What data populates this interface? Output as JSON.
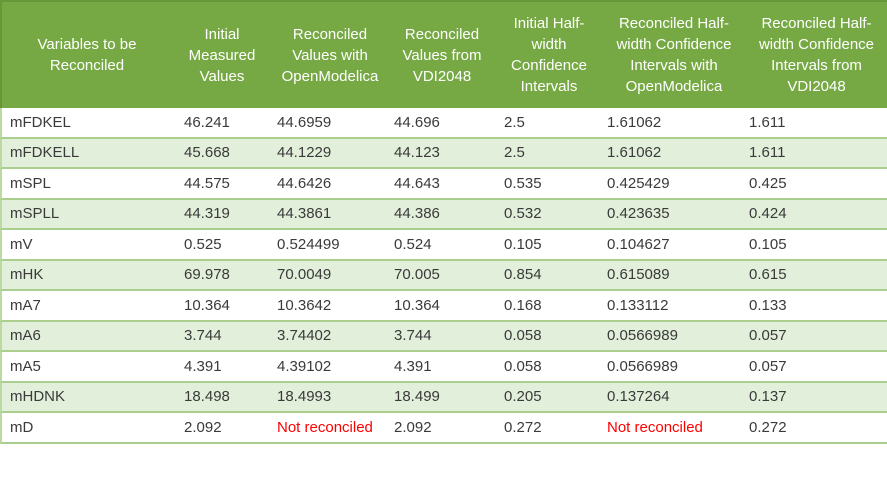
{
  "table": {
    "not_reconciled_label": "Not reconciled",
    "columns": [
      {
        "id": "variables",
        "label": "Variables to be Reconciled"
      },
      {
        "id": "initial-measured-values",
        "label": "Initial Measured Values"
      },
      {
        "id": "reconciled-values-openmodelica",
        "label": "Reconciled Values with OpenModelica"
      },
      {
        "id": "reconciled-values-vdi2048",
        "label": "Reconciled Values from VDI2048"
      },
      {
        "id": "initial-halfwidth-confidence-intervals",
        "label": "Initial Half-width Confidence Intervals"
      },
      {
        "id": "reconciled-halfwidth-ci-openmodelica",
        "label": "Reconciled Half-width Confidence Intervals with OpenModelica"
      },
      {
        "id": "reconciled-halfwidth-ci-vdi2048",
        "label": "Reconciled Half-width Confidence Intervals from VDI2048"
      }
    ],
    "rows": [
      {
        "variable": "mFDKEL",
        "values": [
          "46.241",
          "44.6959",
          "44.696",
          "2.5",
          "1.61062",
          "1.611"
        ]
      },
      {
        "variable": "mFDKELL",
        "values": [
          "45.668",
          "44.1229",
          "44.123",
          "2.5",
          "1.61062",
          "1.611"
        ]
      },
      {
        "variable": "mSPL",
        "values": [
          "44.575",
          "44.6426",
          "44.643",
          "0.535",
          "0.425429",
          "0.425"
        ]
      },
      {
        "variable": "mSPLL",
        "values": [
          "44.319",
          "44.3861",
          "44.386",
          "0.532",
          "0.423635",
          "0.424"
        ]
      },
      {
        "variable": "mV",
        "values": [
          "0.525",
          "0.524499",
          "0.524",
          "0.105",
          "0.104627",
          "0.105"
        ]
      },
      {
        "variable": "mHK",
        "values": [
          "69.978",
          "70.0049",
          "70.005",
          "0.854",
          "0.615089",
          "0.615"
        ]
      },
      {
        "variable": "mA7",
        "values": [
          "10.364",
          "10.3642",
          "10.364",
          "0.168",
          "0.133112",
          "0.133"
        ]
      },
      {
        "variable": "mA6",
        "values": [
          "3.744",
          "3.74402",
          "3.744",
          "0.058",
          "0.0566989",
          "0.057"
        ]
      },
      {
        "variable": "mA5",
        "values": [
          "4.391",
          "4.39102",
          "4.391",
          "0.058",
          "0.0566989",
          "0.057"
        ]
      },
      {
        "variable": "mHDNK",
        "values": [
          "18.498",
          "18.4993",
          "18.499",
          "0.205",
          "0.137264",
          "0.137"
        ]
      },
      {
        "variable": "mD",
        "values": [
          "2.092",
          "Not reconciled",
          "2.092",
          "0.272",
          "Not reconciled",
          "0.272"
        ]
      }
    ]
  },
  "colors": {
    "header_bg": "#76a944",
    "header_edge": "#68973a",
    "header_text": "#ffffff",
    "row_alt_bg": "#e2efda",
    "row_border": "#a9ce8e",
    "text": "#3a3a3a",
    "error_text": "#ff0000"
  }
}
